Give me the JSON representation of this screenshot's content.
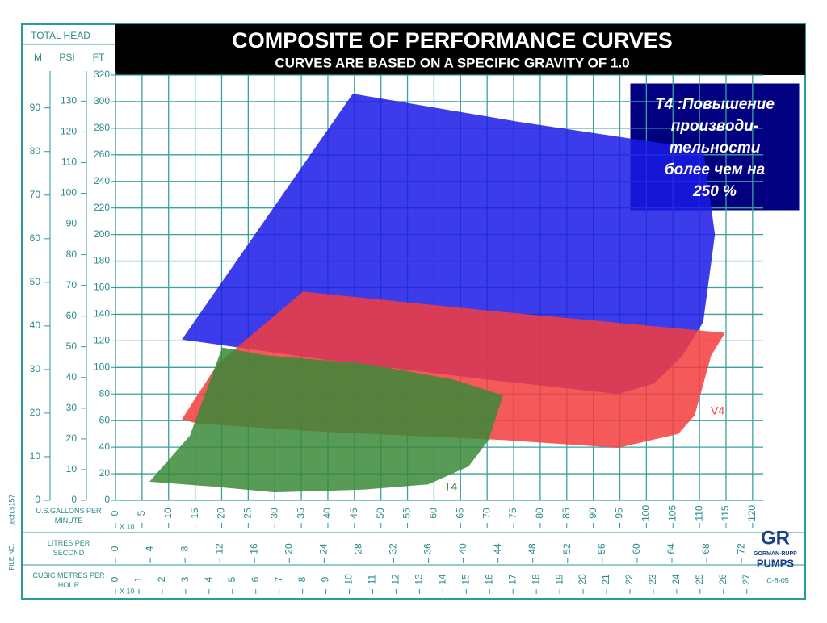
{
  "chart_data": {
    "type": "polygon",
    "title": "COMPOSITE OF PERFORMANCE CURVES",
    "subtitle": "CURVES ARE BASED ON A SPECIFIC GRAVITY OF 1.0",
    "y_axis_title": "TOTAL HEAD",
    "y_axes": [
      {
        "label": "M",
        "lim": [
          0,
          97.53
        ],
        "ticks": [
          0,
          10,
          20,
          30,
          40,
          50,
          60,
          70,
          80,
          90
        ]
      },
      {
        "label": "PSI",
        "lim": [
          0,
          138.5
        ],
        "ticks": [
          0,
          10,
          20,
          30,
          40,
          50,
          60,
          70,
          80,
          90,
          100,
          110,
          120,
          130
        ]
      },
      {
        "label": "FT",
        "lim": [
          0,
          320
        ],
        "ticks": [
          0,
          20,
          40,
          60,
          80,
          100,
          120,
          140,
          160,
          180,
          200,
          220,
          240,
          260,
          280,
          300,
          320
        ]
      }
    ],
    "x_axes": [
      {
        "label": "U.S.GALLONS PER MINUTE",
        "multiplier": "X 10",
        "lim": [
          0,
          122
        ],
        "ticks": [
          0,
          5,
          10,
          15,
          20,
          25,
          30,
          35,
          40,
          45,
          50,
          55,
          60,
          65,
          70,
          75,
          80,
          85,
          90,
          95,
          100,
          105,
          110,
          115,
          120
        ]
      },
      {
        "label": "LITRES PER SECOND",
        "lim": [
          0,
          74.5
        ],
        "ticks": [
          0,
          4,
          8,
          12,
          16,
          20,
          24,
          28,
          32,
          36,
          40,
          44,
          48,
          52,
          56,
          60,
          64,
          68,
          72
        ]
      },
      {
        "label": "CUBIC METRES PER HOUR",
        "multiplier": "X 10",
        "lim": [
          0,
          27.7
        ],
        "ticks": [
          0,
          1,
          2,
          3,
          4,
          5,
          6,
          7,
          8,
          9,
          10,
          11,
          12,
          13,
          14,
          15,
          16,
          17,
          18,
          19,
          20,
          21,
          22,
          23,
          24,
          25,
          26,
          27
        ]
      }
    ],
    "grid": true,
    "series": [
      {
        "color": "#1a1ae6",
        "x": [
          12.5,
          44.7,
          75.6,
          110.7,
          112.9,
          110.7,
          106.8,
          101.5,
          94.7,
          69.6,
          39.1
        ],
        "values": [
          121,
          306,
          285,
          264,
          200,
          134,
          109,
          88,
          80,
          91,
          106
        ]
      },
      {
        "name": "V4",
        "color": "#f53c3c",
        "x": [
          12.5,
          19.3,
          35.3,
          69.6,
          114.8,
          112.2,
          109.1,
          106,
          94.7,
          72.6,
          39.1,
          15.5
        ],
        "values": [
          61,
          103,
          157,
          143,
          126,
          109,
          64,
          50,
          39.5,
          45.5,
          51.6,
          57.7
        ]
      },
      {
        "name": "T4",
        "color": "#3a8a3a",
        "x": [
          6.4,
          14,
          20.1,
          28.5,
          46.7,
          63.5,
          73,
          70.3,
          66.5,
          58.9,
          46.7,
          30,
          19.3
        ],
        "values": [
          14,
          48.6,
          115,
          109,
          103,
          91,
          79,
          45.5,
          25.5,
          12,
          8,
          6,
          10
        ]
      }
    ],
    "callout": [
      "T4 :Повышение",
      "производи-",
      "тельности",
      "более чем на",
      "250 %"
    ],
    "side_notes": [
      "tech.s157",
      "FILE NO."
    ],
    "drawing_code": "C-8-05",
    "logo": [
      "GR",
      "GORMAN-RUPP",
      "PUMPS"
    ]
  }
}
